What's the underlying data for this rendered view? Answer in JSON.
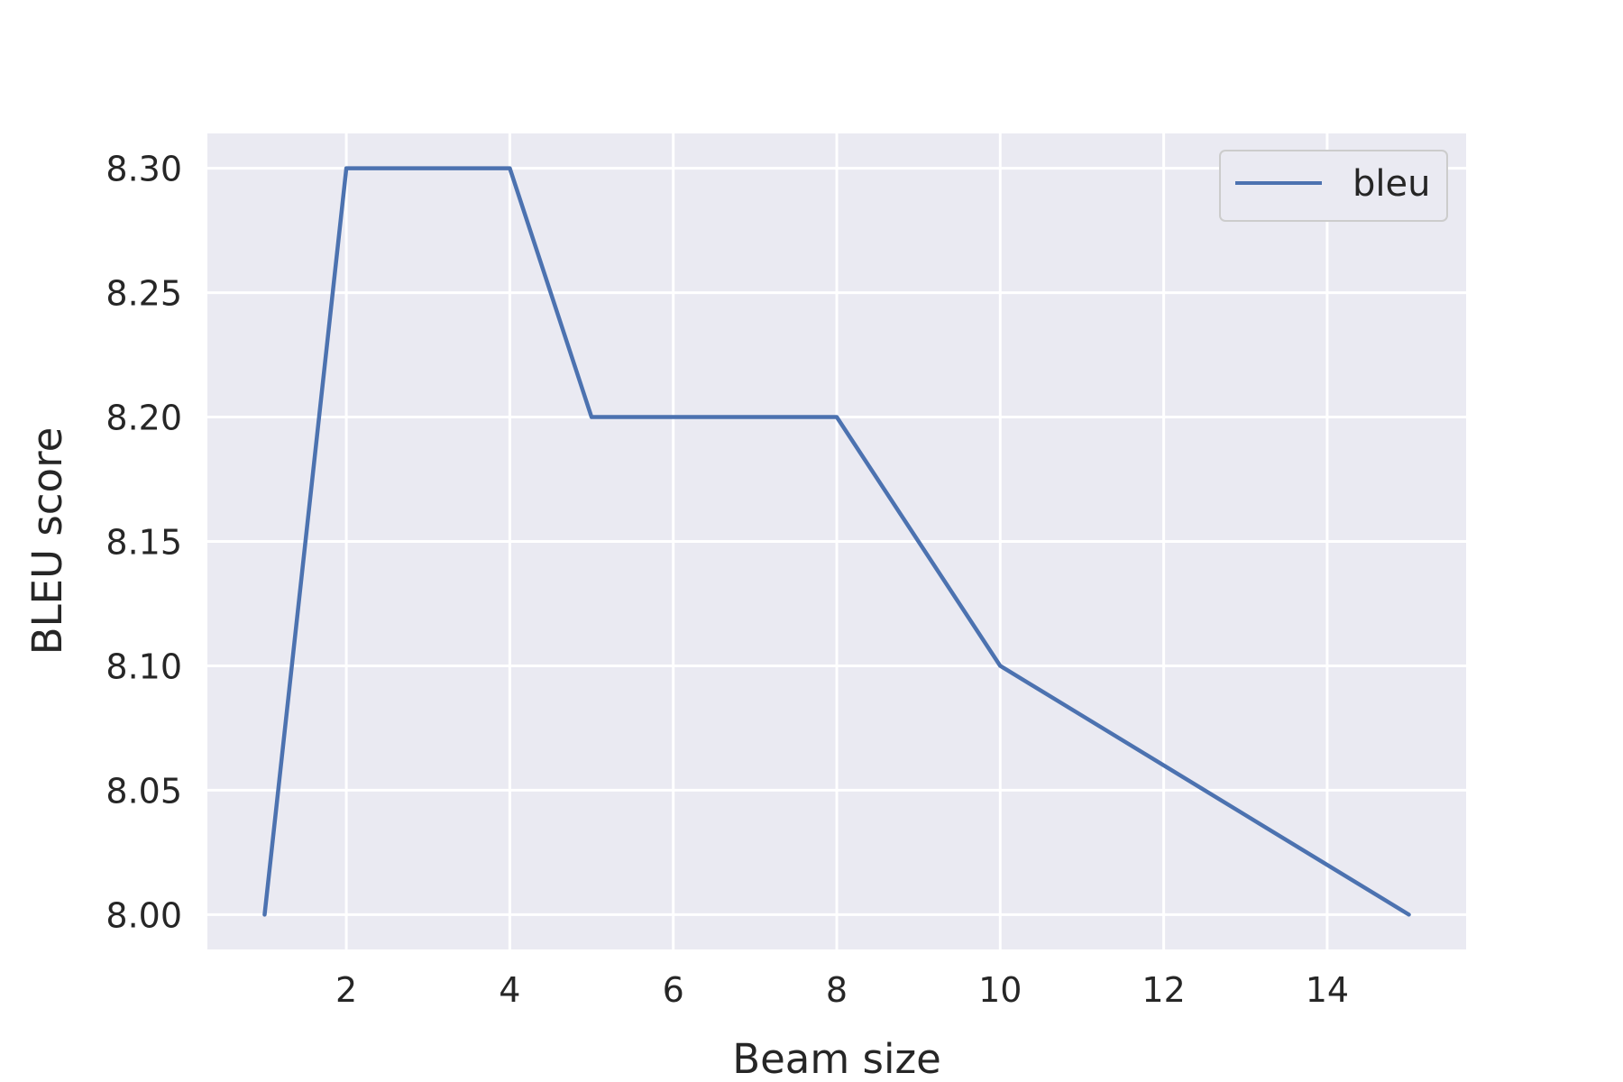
{
  "chart_data": {
    "type": "line",
    "title": "",
    "xlabel": "Beam size",
    "ylabel": "BLEU score",
    "x": [
      1,
      2,
      3,
      4,
      5,
      6,
      7,
      8,
      9,
      10,
      11,
      12,
      13,
      14,
      15
    ],
    "series": [
      {
        "name": "bleu",
        "color": "#4c72b0",
        "values": [
          8.0,
          8.3,
          8.3,
          8.3,
          8.2,
          8.2,
          8.2,
          8.2,
          8.15,
          8.1,
          8.08,
          8.06,
          8.04,
          8.02,
          8.0
        ]
      }
    ],
    "xlim": [
      0.3,
      15.7
    ],
    "ylim": [
      7.986,
      8.314
    ],
    "xticks": [
      2,
      4,
      6,
      8,
      10,
      12,
      14
    ],
    "xtick_labels": [
      "2",
      "4",
      "6",
      "8",
      "10",
      "12",
      "14"
    ],
    "yticks": [
      8.0,
      8.05,
      8.1,
      8.15,
      8.2,
      8.25,
      8.3
    ],
    "ytick_labels": [
      "8.00",
      "8.05",
      "8.10",
      "8.15",
      "8.20",
      "8.25",
      "8.30"
    ],
    "grid": true,
    "legend_position": "top-right",
    "background_color": "#eaeaf2",
    "grid_color": "#ffffff"
  }
}
